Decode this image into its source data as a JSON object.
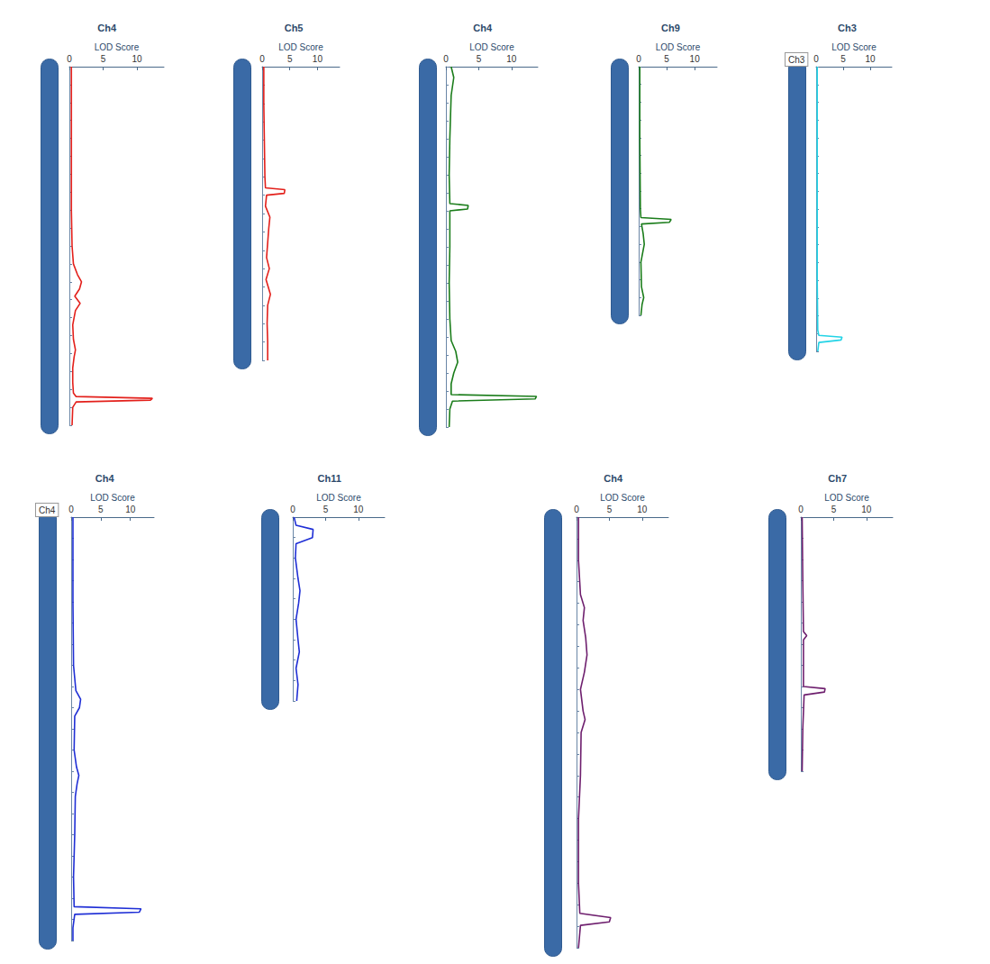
{
  "chart_data": [
    {
      "type": "line",
      "title": "Ch4",
      "x_label": "LOD Score",
      "color": "#e3201b",
      "grid": false,
      "tick_labels": "x",
      "xlim": [
        0,
        14
      ],
      "xticks": [
        0,
        5,
        10
      ],
      "ylim": [
        0,
        100
      ],
      "yticks": [
        0,
        5,
        10,
        15,
        20,
        25,
        30,
        35,
        40,
        45,
        50,
        55,
        60,
        65,
        70,
        75,
        80,
        85,
        90,
        95,
        100
      ],
      "positions": [
        0,
        10,
        20,
        30,
        40,
        50,
        55,
        58,
        60,
        62,
        64,
        66,
        68,
        72,
        76,
        79,
        81,
        84,
        88,
        91,
        92,
        92.5,
        93,
        93.5,
        95,
        100
      ],
      "values": [
        0.3,
        0.3,
        0.3,
        0.3,
        0.3,
        0.4,
        0.6,
        1.2,
        1.8,
        1.5,
        0.8,
        1.6,
        0.9,
        0.5,
        0.6,
        0.9,
        0.7,
        0.5,
        0.5,
        0.6,
        1,
        12.3,
        12.0,
        1,
        0.5,
        0.4
      ]
    },
    {
      "type": "line",
      "title": "Ch5",
      "x_label": "LOD Score",
      "color": "#e3201b",
      "grid": false,
      "tick_labels": "x",
      "xlim": [
        0,
        14
      ],
      "xticks": [
        0,
        5,
        10
      ],
      "ylim": [
        0,
        80
      ],
      "yticks": [
        0,
        5,
        10,
        15,
        20,
        25,
        30,
        35,
        40,
        45,
        50,
        55,
        60,
        65,
        70,
        75,
        80
      ],
      "positions": [
        0,
        10,
        20,
        30,
        33,
        33.5,
        34.5,
        35,
        38,
        41,
        44,
        48,
        52,
        55,
        58,
        62,
        65,
        70,
        75,
        80
      ],
      "values": [
        0.3,
        0.3,
        0.4,
        0.5,
        0.6,
        4.1,
        4,
        0.8,
        0.6,
        1.4,
        1.2,
        1.0,
        0.8,
        1.3,
        0.7,
        1.5,
        1.0,
        0.9,
        1.0,
        1.0
      ]
    },
    {
      "type": "line",
      "title": "Ch4",
      "x_label": "LOD Score",
      "color": "#1b7d1b",
      "grid": false,
      "tick_labels": "x",
      "xlim": [
        0,
        14
      ],
      "xticks": [
        0,
        5,
        10
      ],
      "ylim": [
        0,
        100
      ],
      "yticks": [
        0,
        5,
        10,
        15,
        20,
        25,
        30,
        35,
        40,
        45,
        50,
        55,
        60,
        65,
        70,
        75,
        80,
        85,
        90,
        95,
        100
      ],
      "positions": [
        0,
        3,
        8,
        20,
        30,
        38,
        38.5,
        39.5,
        40,
        50,
        60,
        70,
        76,
        79,
        82,
        85,
        88,
        91,
        91.5,
        92.2,
        92.8,
        95,
        100
      ],
      "values": [
        0.8,
        1.2,
        0.8,
        0.6,
        0.5,
        0.6,
        3.4,
        3.3,
        0.6,
        0.6,
        0.5,
        0.6,
        0.8,
        1.5,
        1.8,
        1.2,
        0.8,
        0.8,
        13.8,
        13.6,
        1,
        0.6,
        0.5
      ]
    },
    {
      "type": "line",
      "title": "Ch9",
      "x_label": "LOD Score",
      "color": "#1b7d1b",
      "grid": false,
      "tick_labels": "x",
      "xlim": [
        0,
        14
      ],
      "xticks": [
        0,
        5,
        10
      ],
      "ylim": [
        0,
        70
      ],
      "yticks": [
        0,
        5,
        10,
        15,
        20,
        25,
        30,
        35,
        40,
        45,
        50,
        55,
        60,
        65,
        70
      ],
      "positions": [
        0,
        20,
        40,
        42.5,
        43,
        43.8,
        44.3,
        47,
        50,
        55,
        62,
        65,
        67,
        70
      ],
      "values": [
        0.2,
        0.2,
        0.3,
        0.4,
        5.8,
        5.5,
        0.5,
        0.8,
        1.0,
        0.4,
        0.5,
        0.9,
        0.6,
        0.4
      ]
    },
    {
      "type": "line",
      "title": "Ch3",
      "x_label": "LOD Score",
      "color": "#22d3e6",
      "grid": false,
      "tick_labels": "x",
      "annotation": "Ch3",
      "xlim": [
        0,
        14
      ],
      "xticks": [
        0,
        5,
        10
      ],
      "ylim": [
        0,
        80
      ],
      "yticks": [
        0,
        5,
        10,
        15,
        20,
        25,
        30,
        35,
        40,
        45,
        50,
        55,
        60,
        65,
        70,
        75,
        80
      ],
      "positions": [
        0,
        30,
        60,
        74,
        75.5,
        76,
        76.8,
        77.5,
        80
      ],
      "values": [
        0.2,
        0.2,
        0.2,
        0.3,
        0.5,
        4.8,
        4.6,
        0.5,
        0.3
      ]
    },
    {
      "type": "line",
      "title": "Ch4",
      "x_label": "LOD Score",
      "color": "#1f2fd6",
      "grid": false,
      "tick_labels": "x",
      "annotation": "Ch4",
      "xlim": [
        0,
        14
      ],
      "xticks": [
        0,
        5,
        10
      ],
      "ylim": [
        0,
        100
      ],
      "yticks": [
        0,
        5,
        10,
        15,
        20,
        25,
        30,
        35,
        40,
        45,
        50,
        55,
        60,
        65,
        70,
        75,
        80,
        85,
        90,
        95,
        100
      ],
      "positions": [
        0,
        20,
        35,
        41,
        43,
        45,
        47,
        55,
        59,
        61,
        63,
        66,
        75,
        85,
        92,
        92.5,
        93.3,
        93.8,
        97,
        100
      ],
      "values": [
        0.3,
        0.3,
        0.4,
        0.8,
        1.6,
        1.4,
        0.6,
        0.5,
        0.9,
        1.3,
        1.0,
        0.7,
        0.6,
        0.4,
        0.5,
        11.8,
        11.5,
        0.6,
        0.3,
        0.3
      ]
    },
    {
      "type": "line",
      "title": "Ch11",
      "x_label": "LOD Score",
      "color": "#1f2fd6",
      "grid": false,
      "tick_labels": "x",
      "xlim": [
        0,
        14
      ],
      "xticks": [
        0,
        5,
        10
      ],
      "ylim": [
        0,
        45
      ],
      "yticks": [
        0,
        5,
        10,
        15,
        20,
        25,
        30,
        35,
        40,
        45
      ],
      "positions": [
        0,
        2,
        3,
        5,
        6.5,
        10,
        15,
        18,
        21,
        25,
        30,
        33,
        37,
        41,
        45
      ],
      "values": [
        0.2,
        0.5,
        3.1,
        3.0,
        0.5,
        0.4,
        0.8,
        1.1,
        0.9,
        0.5,
        0.8,
        1.0,
        0.5,
        0.8,
        0.6
      ]
    },
    {
      "type": "line",
      "title": "Ch4",
      "x_label": "LOD Score",
      "color": "#6e1f6e",
      "grid": false,
      "tick_labels": "x",
      "xlim": [
        0,
        14
      ],
      "xticks": [
        0,
        5,
        10
      ],
      "ylim": [
        0,
        100
      ],
      "yticks": [
        0,
        5,
        10,
        15,
        20,
        25,
        30,
        35,
        40,
        45,
        50,
        55,
        60,
        65,
        70,
        75,
        80,
        85,
        90,
        95,
        100
      ],
      "positions": [
        0,
        10,
        18,
        21,
        24,
        28,
        32,
        36,
        40,
        45,
        47,
        50,
        60,
        70,
        85,
        92,
        93,
        94,
        94.8,
        100
      ],
      "values": [
        0.3,
        0.3,
        0.6,
        1.2,
        1.0,
        1.4,
        1.6,
        1.2,
        0.6,
        1.0,
        1.3,
        0.7,
        0.6,
        0.3,
        0.3,
        0.5,
        5.2,
        5.0,
        0.6,
        0.3
      ]
    },
    {
      "type": "line",
      "title": "Ch7",
      "x_label": "LOD Score",
      "color": "#6e1f6e",
      "grid": false,
      "tick_labels": "x",
      "xlim": [
        0,
        14
      ],
      "xticks": [
        0,
        5,
        10
      ],
      "ylim": [
        0,
        60
      ],
      "yticks": [
        0,
        5,
        10,
        15,
        20,
        25,
        30,
        35,
        40,
        45,
        50,
        55,
        60
      ],
      "positions": [
        0,
        15,
        27,
        28,
        29,
        40,
        40.5,
        41.3,
        42,
        50,
        60
      ],
      "values": [
        0.2,
        0.3,
        0.4,
        0.9,
        0.4,
        0.4,
        3.7,
        3.6,
        0.5,
        0.3,
        0.2
      ]
    }
  ]
}
